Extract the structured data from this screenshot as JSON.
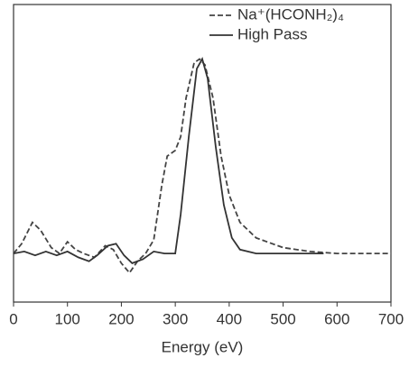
{
  "chart_data": {
    "type": "line",
    "x_label": "Energy (eV)",
    "xlim": [
      0,
      700
    ],
    "xticks": [
      0,
      100,
      200,
      300,
      400,
      500,
      600,
      700
    ],
    "ylim": [
      -0.25,
      1.28
    ],
    "legend": "top-right",
    "series": [
      {
        "name": "Na⁺(HCONH₂)₄",
        "color": "#444444",
        "dash": "dashed",
        "x": [
          0,
          15,
          35,
          50,
          70,
          85,
          100,
          115,
          130,
          150,
          170,
          185,
          200,
          215,
          230,
          245,
          260,
          275,
          285,
          300,
          310,
          320,
          335,
          345,
          355,
          370,
          385,
          400,
          420,
          450,
          500,
          550,
          600,
          700
        ],
        "values": [
          0,
          0.05,
          0.16,
          0.12,
          0.03,
          0,
          0.06,
          0.02,
          0,
          -0.02,
          0.04,
          0.02,
          -0.05,
          -0.1,
          -0.04,
          0,
          0.07,
          0.35,
          0.5,
          0.53,
          0.6,
          0.8,
          0.98,
          1.0,
          0.97,
          0.8,
          0.5,
          0.3,
          0.16,
          0.08,
          0.03,
          0.01,
          0,
          0
        ]
      },
      {
        "name": "High Pass",
        "color": "#333333",
        "dash": "solid",
        "x": [
          0,
          20,
          40,
          60,
          80,
          100,
          120,
          140,
          155,
          175,
          190,
          205,
          220,
          240,
          260,
          280,
          300,
          310,
          325,
          340,
          350,
          360,
          375,
          390,
          405,
          420,
          450,
          500,
          575
        ],
        "values": [
          0,
          0.01,
          -0.01,
          0.01,
          -0.01,
          0.01,
          -0.02,
          -0.04,
          -0.01,
          0.04,
          0.05,
          -0.01,
          -0.05,
          -0.03,
          0.01,
          0,
          0,
          0.2,
          0.6,
          0.95,
          1.0,
          0.9,
          0.55,
          0.25,
          0.08,
          0.02,
          0,
          0,
          0
        ]
      }
    ]
  }
}
